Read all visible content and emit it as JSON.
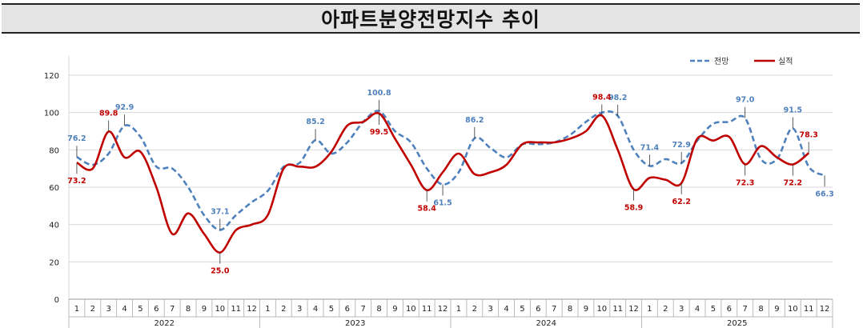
{
  "title": "아파트분양전망지수 추이",
  "chart_data": {
    "type": "line",
    "title": "아파트분양전망지수 추이",
    "xlabel": "",
    "ylabel": "",
    "ylim": [
      0,
      120
    ],
    "yticks": [
      0,
      20,
      40,
      60,
      80,
      100,
      120
    ],
    "grid": true,
    "legend_position": "top-right",
    "years": [
      "2022",
      "2023",
      "2024",
      "2025"
    ],
    "months": [
      "1",
      "2",
      "3",
      "4",
      "5",
      "6",
      "7",
      "8",
      "9",
      "10",
      "11",
      "12"
    ],
    "series": [
      {
        "name": "전망",
        "color": "#4f81bd",
        "style": "dashed",
        "values": [
          76.2,
          72,
          78,
          92.9,
          87,
          71,
          70,
          60,
          45,
          37.1,
          45,
          52,
          58,
          71,
          73,
          85.2,
          78,
          84,
          95,
          100.8,
          90,
          84,
          70,
          61.5,
          68,
          86.2,
          81,
          76,
          83,
          83,
          84,
          88,
          95,
          100,
          98.2,
          80,
          71.4,
          75,
          72.9,
          85,
          94,
          95,
          97.0,
          75,
          75,
          91.5,
          71,
          66.3
        ]
      },
      {
        "name": "실적",
        "color": "#c00000",
        "style": "solid",
        "values": [
          73.2,
          70,
          89.8,
          76,
          79,
          60,
          35,
          46,
          35,
          25.0,
          37,
          40,
          45,
          70,
          71,
          71,
          79,
          93,
          95,
          99.5,
          86,
          72,
          58.4,
          68,
          78,
          67,
          68,
          72,
          83,
          84,
          84,
          86,
          90,
          98.4,
          80,
          58.9,
          65,
          64,
          62.2,
          86,
          85,
          87,
          72.3,
          82,
          76,
          72.2,
          78.3,
          null
        ]
      }
    ],
    "data_labels": [
      {
        "series": 0,
        "index": 0,
        "text": "76.2",
        "side": "above"
      },
      {
        "series": 0,
        "index": 3,
        "text": "92.9",
        "side": "above"
      },
      {
        "series": 0,
        "index": 9,
        "text": "37.1",
        "side": "above"
      },
      {
        "series": 0,
        "index": 15,
        "text": "85.2",
        "side": "above"
      },
      {
        "series": 0,
        "index": 19,
        "text": "100.8",
        "side": "above"
      },
      {
        "series": 0,
        "index": 23,
        "text": "61.5",
        "side": "below"
      },
      {
        "series": 0,
        "index": 25,
        "text": "86.2",
        "side": "above"
      },
      {
        "series": 0,
        "index": 34,
        "text": "98.2",
        "side": "above"
      },
      {
        "series": 0,
        "index": 36,
        "text": "71.4",
        "side": "above"
      },
      {
        "series": 0,
        "index": 38,
        "text": "72.9",
        "side": "above"
      },
      {
        "series": 0,
        "index": 42,
        "text": "97.0",
        "side": "above"
      },
      {
        "series": 0,
        "index": 45,
        "text": "91.5",
        "side": "above"
      },
      {
        "series": 0,
        "index": 47,
        "text": "66.3",
        "side": "below"
      },
      {
        "series": 1,
        "index": 0,
        "text": "73.2",
        "side": "below"
      },
      {
        "series": 1,
        "index": 2,
        "text": "89.8",
        "side": "above"
      },
      {
        "series": 1,
        "index": 9,
        "text": "25.0",
        "side": "below"
      },
      {
        "series": 1,
        "index": 19,
        "text": "99.5",
        "side": "below"
      },
      {
        "series": 1,
        "index": 22,
        "text": "58.4",
        "side": "below"
      },
      {
        "series": 1,
        "index": 33,
        "text": "98.4",
        "side": "above"
      },
      {
        "series": 1,
        "index": 35,
        "text": "58.9",
        "side": "below"
      },
      {
        "series": 1,
        "index": 38,
        "text": "62.2",
        "side": "below"
      },
      {
        "series": 1,
        "index": 42,
        "text": "72.3",
        "side": "below"
      },
      {
        "series": 1,
        "index": 45,
        "text": "72.2",
        "side": "below"
      },
      {
        "series": 1,
        "index": 46,
        "text": "78.3",
        "side": "above"
      }
    ]
  }
}
